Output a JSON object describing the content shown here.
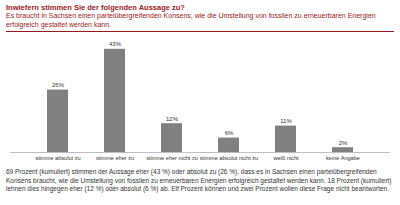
{
  "chart_data": {
    "type": "bar",
    "title": "Inwiefern stimmen Sie der folgenden Aussage zu?",
    "subtitle": "Es braucht in Sachsen einen parteiübergreifenden Konsens, wie die Umstellung von fossilen zu erneuerbaren Energien erfolgreich gestaltet werden kann.",
    "caption": "69 Prozent (kumuliert) stimmen der Aussage eher (43 %) oder absolut zu (26 %), dass es in Sachsen einen parteiübergreifenden Konsens braucht, wie die Umstellung von fossilen zu erneuerbaren Energien erfolgreich gestaltet werden kann. 18 Prozent (kumuliert) lehnen dies hingegen eher (12 %) oder absolut (6 %) ab. Elf Prozent können und zwei Prozent wollen diese Frage nicht beantworten.",
    "categories": [
      "stimme absolut zu",
      "stimme eher zu",
      "stimme eher nicht zu",
      "stimme absolut nicht zu",
      "weiß nicht",
      "keine Angabe"
    ],
    "values": [
      26,
      43,
      12,
      6,
      11,
      2
    ],
    "value_labels": [
      "26%",
      "43%",
      "12%",
      "6%",
      "11%",
      "2%"
    ],
    "color": "#808080",
    "ylim": [
      0,
      45
    ],
    "data_labels": true,
    "tick_labels": "x",
    "grid": false
  }
}
